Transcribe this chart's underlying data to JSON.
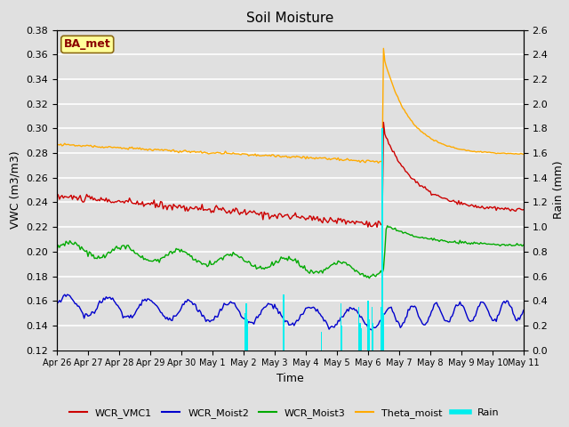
{
  "title": "Soil Moisture",
  "xlabel": "Time",
  "ylabel_left": "VWC (m3/m3)",
  "ylabel_right": "Rain (mm)",
  "ylim_left": [
    0.12,
    0.38
  ],
  "ylim_right": [
    0.0,
    2.6
  ],
  "xtick_labels": [
    "Apr 26",
    "Apr 27",
    "Apr 28",
    "Apr 29",
    "Apr 30",
    "May 1",
    "May 2",
    "May 3",
    "May 4",
    "May 5",
    "May 6",
    "May 7",
    "May 8",
    "May 9",
    "May 10",
    "May 11"
  ],
  "bg_color": "#e0e0e0",
  "plot_bg_color": "#e0e0e0",
  "grid_color": "#ffffff",
  "line_colors": {
    "WCR_VMC1": "#cc0000",
    "WCR_Moist2": "#0000cc",
    "WCR_Moist3": "#00aa00",
    "Theta_moist": "#ffaa00",
    "Rain": "#00eeee"
  },
  "annotation_text": "BA_met",
  "annotation_box_color": "#ffff99",
  "annotation_text_color": "#8b0000",
  "annotation_box_edge": "#8b6914"
}
